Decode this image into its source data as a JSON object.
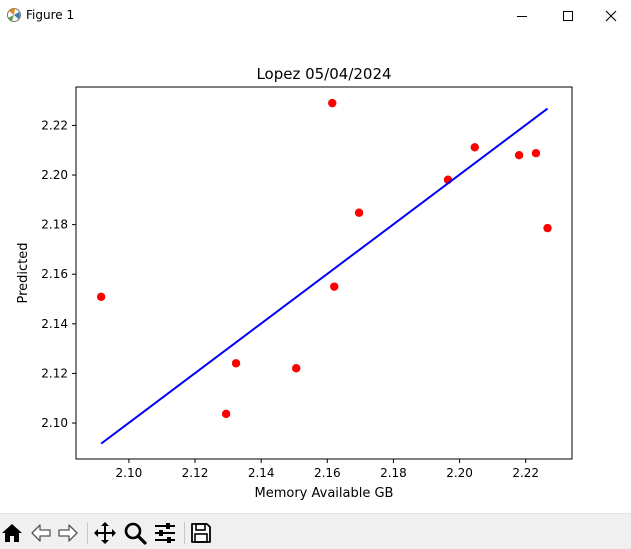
{
  "window": {
    "title": "Figure 1",
    "controls": [
      "minimize-icon",
      "maximize-icon",
      "close-icon"
    ]
  },
  "toolbar": {
    "buttons": [
      "home-icon",
      "back-icon",
      "forward-icon",
      "pan-icon",
      "zoom-icon",
      "configure-subplots-icon",
      "save-icon"
    ]
  },
  "colors": {
    "points": "#ff0000",
    "fit_line": "#0000ff"
  },
  "chart_data": {
    "type": "scatter",
    "title": "Lopez 05/04/2024",
    "xlabel": "Memory Available GB",
    "ylabel": "Predicted",
    "xlim": [
      2.084,
      2.234
    ],
    "ylim": [
      2.0855,
      2.2355
    ],
    "xticks": [
      2.1,
      2.12,
      2.14,
      2.16,
      2.18,
      2.2,
      2.22
    ],
    "xtick_labels": [
      "2.10",
      "2.12",
      "2.14",
      "2.16",
      "2.18",
      "2.20",
      "2.22"
    ],
    "yticks": [
      2.1,
      2.12,
      2.14,
      2.16,
      2.18,
      2.2,
      2.22
    ],
    "ytick_labels": [
      "2.10",
      "2.12",
      "2.14",
      "2.16",
      "2.18",
      "2.20",
      "2.22"
    ],
    "grid": false,
    "series": [
      {
        "kind": "scatter",
        "points": [
          {
            "x": 2.0916,
            "y": 2.1509
          },
          {
            "x": 2.1294,
            "y": 2.1037
          },
          {
            "x": 2.1324,
            "y": 2.1241
          },
          {
            "x": 2.1506,
            "y": 2.1221
          },
          {
            "x": 2.1615,
            "y": 2.229
          },
          {
            "x": 2.1621,
            "y": 2.155
          },
          {
            "x": 2.1696,
            "y": 2.1848
          },
          {
            "x": 2.1965,
            "y": 2.1981
          },
          {
            "x": 2.2046,
            "y": 2.2112
          },
          {
            "x": 2.218,
            "y": 2.208
          },
          {
            "x": 2.2231,
            "y": 2.2088
          },
          {
            "x": 2.2266,
            "y": 2.1786
          }
        ]
      },
      {
        "kind": "line",
        "points": [
          {
            "x": 2.0916,
            "y": 2.0917
          },
          {
            "x": 2.2266,
            "y": 2.2268
          }
        ]
      }
    ]
  }
}
